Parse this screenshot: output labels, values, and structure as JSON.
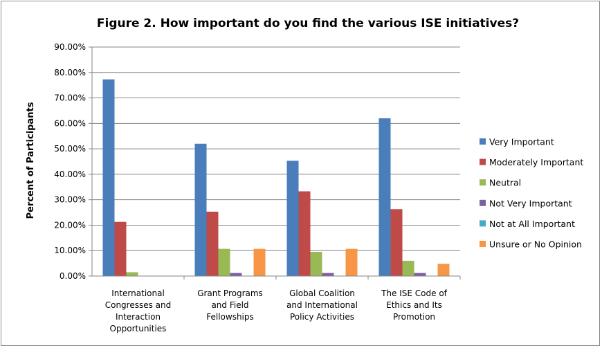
{
  "chart_data": {
    "type": "bar",
    "title": "Figure 2. How important do you find the various ISE initiatives?",
    "ylabel": "Percent of Participants",
    "xlabel": "",
    "ylim": [
      0,
      90
    ],
    "yticks": [
      "0.00%",
      "10.00%",
      "20.00%",
      "30.00%",
      "40.00%",
      "50.00%",
      "60.00%",
      "70.00%",
      "80.00%",
      "90.00%"
    ],
    "grid": "horizontal",
    "legend_position": "right",
    "categories": [
      [
        "International",
        "Congresses and",
        "Interaction",
        "Opportunities"
      ],
      [
        "Grant Programs",
        "and Field",
        "Fellowships"
      ],
      [
        "Global Coalition",
        "and International",
        "Policy Activities"
      ],
      [
        "The ISE Code of",
        "Ethics and Its",
        "Promotion"
      ]
    ],
    "series": [
      {
        "name": "Very Important",
        "color": "#4a7ebb",
        "values": [
          77.3,
          52.0,
          45.3,
          62.0
        ]
      },
      {
        "name": "Moderately Important",
        "color": "#be4b48",
        "values": [
          21.3,
          25.3,
          33.3,
          26.3
        ]
      },
      {
        "name": "Neutral",
        "color": "#98b954",
        "values": [
          1.5,
          10.7,
          9.5,
          6.0
        ]
      },
      {
        "name": "Not Very Important",
        "color": "#7d60a0",
        "values": [
          0,
          1.2,
          1.2,
          1.2
        ]
      },
      {
        "name": "Not at All Important",
        "color": "#46aac5",
        "values": [
          0,
          0,
          0,
          0
        ]
      },
      {
        "name": "Unsure or No Opinion",
        "color": "#f79646",
        "values": [
          0,
          10.7,
          10.7,
          4.8
        ]
      }
    ]
  }
}
